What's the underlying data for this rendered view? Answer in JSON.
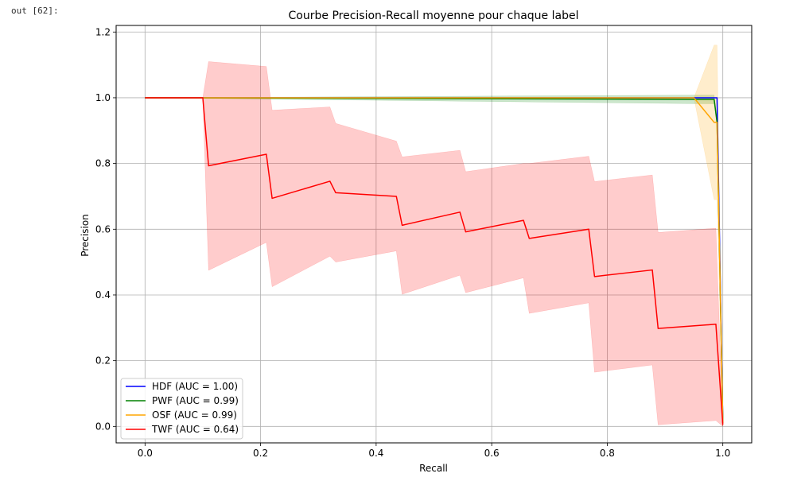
{
  "cell_prompt": "out [62]:",
  "chart_data": {
    "type": "line",
    "title": "Courbe Precision-Recall moyenne pour chaque label",
    "xlabel": "Recall",
    "ylabel": "Precision",
    "xlim": [
      -0.05,
      1.05
    ],
    "ylim": [
      -0.05,
      1.22
    ],
    "xticks": [
      0.0,
      0.2,
      0.4,
      0.6,
      0.8,
      1.0
    ],
    "xtick_labels": [
      "0.0",
      "0.2",
      "0.4",
      "0.6",
      "0.8",
      "1.0"
    ],
    "yticks": [
      0.0,
      0.2,
      0.4,
      0.6,
      0.8,
      1.0,
      1.2
    ],
    "ytick_labels": [
      "0.0",
      "0.2",
      "0.4",
      "0.6",
      "0.8",
      "1.0",
      "1.2"
    ],
    "grid": true,
    "legend_position": "lower-left",
    "series": [
      {
        "name": "HDF (AUC = 1.00)",
        "color": "#0000ff",
        "x": [
          0.0,
          0.95,
          0.99,
          0.99,
          1.0
        ],
        "y": [
          1.0,
          1.0,
          1.0,
          0.999,
          0.01
        ],
        "band_upper": [
          1.0,
          1.0,
          1.0,
          1.0,
          0.02
        ],
        "band_lower": [
          1.0,
          1.0,
          1.0,
          0.998,
          0.0
        ]
      },
      {
        "name": "PWF (AUC = 0.99)",
        "color": "#008000",
        "x": [
          0.0,
          0.95,
          0.985,
          0.99,
          1.0
        ],
        "y": [
          1.0,
          0.995,
          0.995,
          0.925,
          0.01
        ],
        "band_upper": [
          1.0,
          1.008,
          1.008,
          0.93,
          0.02
        ],
        "band_lower": [
          1.0,
          0.982,
          0.982,
          0.92,
          0.0
        ]
      },
      {
        "name": "OSF (AUC = 0.99)",
        "color": "#ffa500",
        "x": [
          0.0,
          0.95,
          0.985,
          0.99,
          1.0
        ],
        "y": [
          1.0,
          1.0,
          0.925,
          0.925,
          0.01
        ],
        "band_upper": [
          1.0,
          1.0,
          1.16,
          1.16,
          0.03
        ],
        "band_lower": [
          1.0,
          1.0,
          0.69,
          0.69,
          0.0
        ]
      },
      {
        "name": "TWF (AUC = 0.64)",
        "color": "#ff0000",
        "x": [
          0.0,
          0.1,
          0.11,
          0.21,
          0.22,
          0.32,
          0.33,
          0.435,
          0.445,
          0.545,
          0.555,
          0.655,
          0.665,
          0.768,
          0.778,
          0.878,
          0.888,
          0.988,
          1.0
        ],
        "y": [
          1.0,
          1.0,
          0.793,
          0.828,
          0.694,
          0.746,
          0.711,
          0.7,
          0.612,
          0.652,
          0.592,
          0.627,
          0.572,
          0.6,
          0.456,
          0.476,
          0.298,
          0.311,
          0.005
        ],
        "band_upper": [
          1.0,
          1.0,
          1.11,
          1.095,
          0.962,
          0.972,
          0.922,
          0.868,
          0.82,
          0.84,
          0.775,
          0.8,
          0.8,
          0.822,
          0.745,
          0.765,
          0.59,
          0.603,
          0.01
        ],
        "band_lower": [
          1.0,
          1.0,
          0.475,
          0.56,
          0.425,
          0.518,
          0.5,
          0.534,
          0.402,
          0.46,
          0.407,
          0.452,
          0.344,
          0.376,
          0.165,
          0.187,
          0.005,
          0.018,
          0.0
        ]
      }
    ]
  }
}
